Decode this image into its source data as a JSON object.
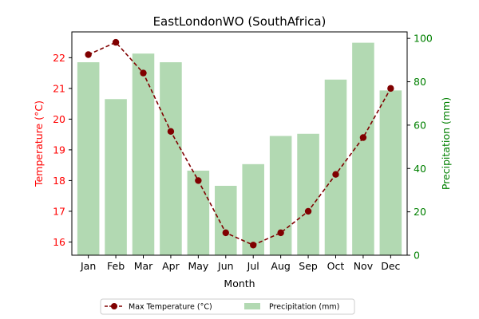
{
  "chart_data": {
    "type": "bar+line",
    "title": "EastLondonWO (SouthAfrica)",
    "xlabel": "Month",
    "ylabel_left": "Temperature (°C)",
    "ylabel_right": "Precipitation (mm)",
    "categories": [
      "Jan",
      "Feb",
      "Mar",
      "Apr",
      "May",
      "Jun",
      "Jul",
      "Aug",
      "Sep",
      "Oct",
      "Nov",
      "Dec"
    ],
    "ylim_left": [
      15.57,
      22.84
    ],
    "ylim_right": [
      0,
      103
    ],
    "yticks_left": [
      16,
      17,
      18,
      19,
      20,
      21,
      22
    ],
    "yticks_right": [
      0,
      20,
      40,
      60,
      80,
      100
    ],
    "series": [
      {
        "name": "Max Temperature (°C)",
        "type": "line",
        "axis": "left",
        "color": "#800000",
        "values": [
          22.1,
          22.5,
          21.5,
          19.6,
          18.0,
          16.3,
          15.9,
          16.3,
          17.0,
          18.2,
          19.4,
          21.0
        ]
      },
      {
        "name": "Precipitation (mm)",
        "type": "bar",
        "axis": "right",
        "color": "#b2d9b2",
        "values": [
          89,
          72,
          93,
          89,
          39,
          32,
          42,
          55,
          56,
          81,
          98,
          76
        ]
      }
    ],
    "colors": {
      "left_axis": "#ff0000",
      "right_axis": "#008000",
      "axes": "#000000"
    },
    "legend_position": "bottom-center",
    "grid": false
  }
}
